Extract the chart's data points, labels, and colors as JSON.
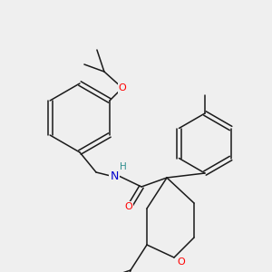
{
  "bg_color": "#efefef",
  "bond_color": "#1a1a1a",
  "atom_colors": {
    "O": "#ff0000",
    "N": "#0000cd",
    "H": "#2f8f8f",
    "C": "#1a1a1a"
  }
}
